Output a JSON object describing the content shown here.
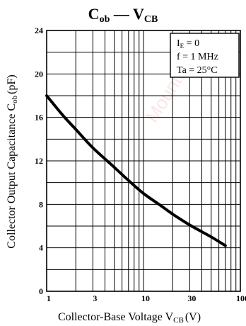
{
  "chart_data": {
    "type": "line",
    "title": {
      "main": "C",
      "sub1": "ob",
      "dash": " — ",
      "main2": "V",
      "sub2": "CB"
    },
    "xlabel": {
      "text": "Collector-Base Voltage V",
      "sub": "CB",
      "unit": "(V)"
    },
    "ylabel": {
      "text": "Collector Output Capacitance C",
      "sub": "ob",
      "unit": "(pF)"
    },
    "x_scale": "log",
    "xlim": [
      1,
      100
    ],
    "ylim": [
      0,
      24
    ],
    "x_ticks": [
      {
        "value": 1,
        "label": "1"
      },
      {
        "value": 3,
        "label": "3"
      },
      {
        "value": 10,
        "label": "10"
      },
      {
        "value": 30,
        "label": "30"
      },
      {
        "value": 100,
        "label": "100"
      }
    ],
    "y_ticks": [
      {
        "value": 0,
        "label": "0"
      },
      {
        "value": 4,
        "label": "4"
      },
      {
        "value": 8,
        "label": "8"
      },
      {
        "value": 12,
        "label": "12"
      },
      {
        "value": 16,
        "label": "16"
      },
      {
        "value": 20,
        "label": "20"
      },
      {
        "value": 24,
        "label": "24"
      }
    ],
    "grid": true,
    "legend": "top-right",
    "conditions": [
      {
        "text": "I",
        "sub": "E",
        "rest": " = 0"
      },
      {
        "text": "f = 1 MHz",
        "sub": "",
        "rest": ""
      },
      {
        "text": "Ta = 25°C",
        "sub": "",
        "rest": ""
      }
    ],
    "series": [
      {
        "x": [
          1,
          1.5,
          2,
          3,
          5,
          7,
          10,
          15,
          20,
          30,
          50,
          70
        ],
        "y": [
          18.0,
          16.1,
          14.9,
          13.2,
          11.4,
          10.2,
          9.0,
          7.9,
          7.1,
          6.1,
          5.0,
          4.2
        ]
      }
    ],
    "color": "#000000"
  },
  "watermark": "Mounter Inc."
}
